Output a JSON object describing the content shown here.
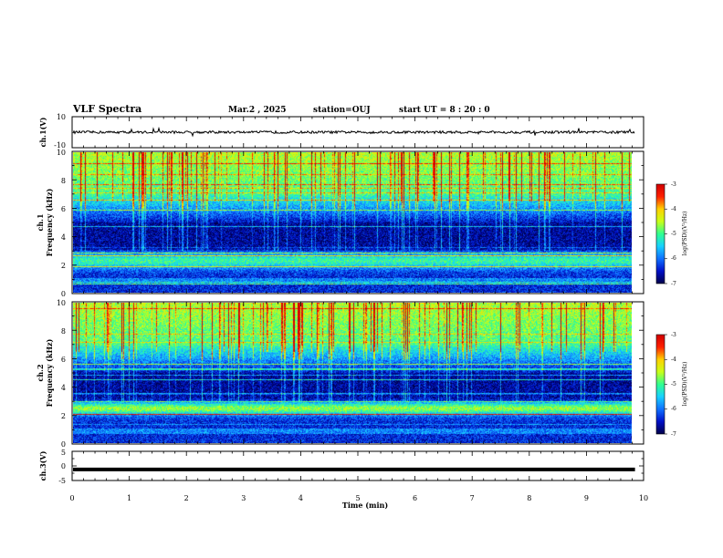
{
  "header": {
    "title": "VLF Spectra",
    "date": "Mar.2 , 2025",
    "station": "station=OUJ",
    "start": "start UT = 8 : 20 : 0"
  },
  "chart_data": [
    {
      "type": "line",
      "panel": "ch1-waveform",
      "ylabel": "ch.1(V)",
      "ylim": [
        -10,
        10
      ],
      "yticks": [
        "10",
        "-10"
      ],
      "xlim": [
        0,
        10
      ],
      "description_level": 0,
      "trace_color": "#000000"
    },
    {
      "type": "heatmap",
      "panel": "ch1-spectrogram",
      "ylabel": "ch.1 Frequency (kHz)",
      "ylabel_line1": "ch.1",
      "ylabel_line2": "Frequency (kHz)",
      "ylim": [
        0,
        10
      ],
      "yticks": [
        "0",
        "2",
        "4",
        "6",
        "8",
        "10"
      ],
      "xlim": [
        0,
        9.85
      ],
      "colorbar": {
        "label": "log(PSD)(V²/Hz)",
        "range": [
          -7,
          -3
        ],
        "ticks": [
          "-3",
          "-4",
          "-5",
          "-6",
          "-7"
        ]
      }
    },
    {
      "type": "heatmap",
      "panel": "ch2-spectrogram",
      "ylabel": "ch.2 Frequency (kHz)",
      "ylabel_line1": "ch.2",
      "ylabel_line2": "Frequency (kHz)",
      "ylim": [
        0,
        10
      ],
      "yticks": [
        "0",
        "2",
        "4",
        "6",
        "8",
        "10"
      ],
      "xlim": [
        0,
        9.85
      ],
      "colorbar": {
        "label": "log(PSD)(V²/Hz)",
        "range": [
          -7,
          -3
        ],
        "ticks": [
          "-3",
          "-4",
          "-5",
          "-6",
          "-7"
        ]
      }
    },
    {
      "type": "line",
      "panel": "ch3-waveform",
      "ylabel": "ch.3(V)",
      "ylim": [
        -5,
        5
      ],
      "yticks": [
        "5",
        "0",
        "-5"
      ],
      "xlim": [
        0,
        10
      ],
      "level": -1.2,
      "trace_color": "#000000"
    }
  ],
  "xaxis": {
    "label": "Time (min)",
    "range": [
      0,
      10
    ],
    "ticks": [
      "0",
      "1",
      "2",
      "3",
      "4",
      "5",
      "6",
      "7",
      "8",
      "9",
      "10"
    ]
  },
  "colormap": [
    "#00004a",
    "#0010c8",
    "#1070ff",
    "#18d0ff",
    "#30ff90",
    "#c8ff18",
    "#ffd000",
    "#ff2000",
    "#d00000"
  ]
}
